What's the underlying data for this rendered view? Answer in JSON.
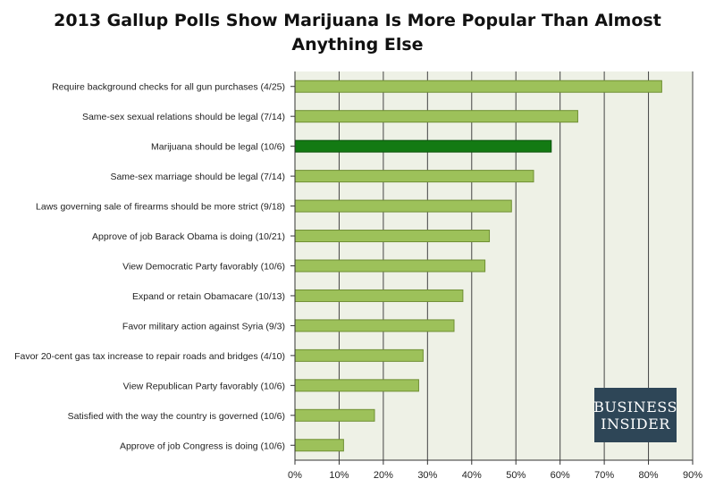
{
  "title_lines": [
    "2013 Gallup Polls Show Marijuana Is More Popular Than Almost",
    "Anything Else"
  ],
  "logo_lines": [
    "BUSINESS",
    "INSIDER"
  ],
  "colors": {
    "bar": "#9dc15a",
    "bar_edge": "#6f8f33",
    "highlight": "#137a13",
    "highlight_edge": "#0b520b",
    "plot_bg": "#eef1e6",
    "grid": "#444444",
    "logo_bg": "#2e4657"
  },
  "chart_data": {
    "type": "bar",
    "orientation": "horizontal",
    "title": "2013 Gallup Polls Show Marijuana Is More Popular Than Almost Anything Else",
    "categories": [
      "Require background checks for all gun purchases (4/25)",
      "Same-sex sexual relations should be legal (7/14)",
      "Marijuana should be legal (10/6)",
      "Same-sex marriage should be legal (7/14)",
      "Laws governing sale of firearms should be more strict (9/18)",
      "Approve of job Barack Obama is doing (10/21)",
      "View Democratic Party favorably (10/6)",
      "Expand or retain Obamacare (10/13)",
      "Favor military action against Syria (9/3)",
      "Favor 20-cent gas tax increase to repair roads and bridges (4/10)",
      "View Republican Party favorably (10/6)",
      "Satisfied with the way the country is governed (10/6)",
      "Approve of job Congress is doing (10/6)"
    ],
    "values": [
      83,
      64,
      58,
      54,
      49,
      44,
      43,
      38,
      36,
      29,
      28,
      18,
      11
    ],
    "highlight_index": 2,
    "xlim": [
      0,
      90
    ],
    "xticks": [
      0,
      10,
      20,
      30,
      40,
      50,
      60,
      70,
      80,
      90
    ],
    "xtick_labels": [
      "0%",
      "10%",
      "20%",
      "30%",
      "40%",
      "50%",
      "60%",
      "70%",
      "80%",
      "90%"
    ],
    "grid": true,
    "xlabel": "",
    "ylabel": ""
  }
}
